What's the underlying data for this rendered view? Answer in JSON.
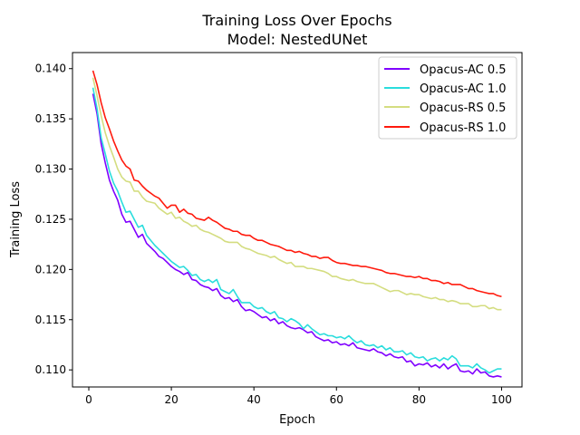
{
  "chart_data": {
    "type": "line",
    "title": "Training Loss Over Epochs",
    "subtitle": "Model: NestedUNet",
    "xlabel": "Epoch",
    "ylabel": "Training Loss",
    "xlim": [
      -3.95,
      104.95
    ],
    "ylim": [
      0.1083,
      0.1416
    ],
    "xticks": [
      0,
      20,
      40,
      60,
      80,
      100
    ],
    "yticks": [
      0.11,
      0.115,
      0.12,
      0.125,
      0.13,
      0.135,
      0.14
    ],
    "ytick_labels": [
      "0.110",
      "0.115",
      "0.120",
      "0.125",
      "0.130",
      "0.135",
      "0.140"
    ],
    "grid": false,
    "legend": "top-right",
    "series": [
      {
        "name": "Opacus-AC 0.5",
        "color": "#8000ff",
        "x_start": 1,
        "values": [
          0.1375,
          0.1355,
          0.1325,
          0.1306,
          0.1289,
          0.1278,
          0.1269,
          0.1255,
          0.1247,
          0.1248,
          0.124,
          0.1232,
          0.1235,
          0.1226,
          0.1222,
          0.1218,
          0.1213,
          0.1211,
          0.1207,
          0.1203,
          0.12,
          0.1198,
          0.1195,
          0.1197,
          0.119,
          0.1189,
          0.1185,
          0.1183,
          0.1182,
          0.1179,
          0.1181,
          0.1174,
          0.1171,
          0.1172,
          0.1168,
          0.117,
          0.1163,
          0.1159,
          0.116,
          0.1158,
          0.1155,
          0.1152,
          0.1153,
          0.1149,
          0.1151,
          0.1146,
          0.1148,
          0.1144,
          0.1142,
          0.1141,
          0.1142,
          0.114,
          0.1137,
          0.1138,
          0.1133,
          0.1131,
          0.1129,
          0.113,
          0.1127,
          0.1128,
          0.1125,
          0.1126,
          0.1124,
          0.1127,
          0.1122,
          0.1121,
          0.112,
          0.1119,
          0.1121,
          0.1118,
          0.1117,
          0.1114,
          0.1116,
          0.1113,
          0.1112,
          0.1113,
          0.1108,
          0.1109,
          0.1104,
          0.1106,
          0.1105,
          0.1107,
          0.1103,
          0.1105,
          0.1102,
          0.1106,
          0.1101,
          0.1104,
          0.1106,
          0.1099,
          0.1098,
          0.1099,
          0.1096,
          0.1101,
          0.1097,
          0.1098,
          0.1094,
          0.1093,
          0.1094,
          0.1093
        ]
      },
      {
        "name": "Opacus-AC 1.0",
        "color": "#2adddd",
        "x_start": 1,
        "values": [
          0.1381,
          0.136,
          0.1331,
          0.1315,
          0.1298,
          0.1286,
          0.1278,
          0.1267,
          0.1257,
          0.1258,
          0.125,
          0.1242,
          0.1244,
          0.1234,
          0.1229,
          0.1224,
          0.122,
          0.1216,
          0.1212,
          0.1208,
          0.1205,
          0.1202,
          0.1203,
          0.1199,
          0.1194,
          0.1195,
          0.119,
          0.1188,
          0.119,
          0.1187,
          0.119,
          0.118,
          0.1178,
          0.1176,
          0.118,
          0.1173,
          0.1167,
          0.1167,
          0.1167,
          0.1163,
          0.1161,
          0.1162,
          0.1158,
          0.1156,
          0.1158,
          0.1152,
          0.1151,
          0.1148,
          0.1151,
          0.1149,
          0.1146,
          0.1141,
          0.1145,
          0.1141,
          0.1138,
          0.1135,
          0.1136,
          0.1134,
          0.1134,
          0.1132,
          0.1133,
          0.1131,
          0.1134,
          0.113,
          0.1127,
          0.1129,
          0.1125,
          0.1124,
          0.1125,
          0.1122,
          0.1124,
          0.112,
          0.1122,
          0.1118,
          0.1118,
          0.1119,
          0.1115,
          0.1117,
          0.1113,
          0.1112,
          0.1113,
          0.1109,
          0.1111,
          0.1112,
          0.1109,
          0.1112,
          0.111,
          0.1114,
          0.1111,
          0.1104,
          0.1104,
          0.1104,
          0.1102,
          0.1106,
          0.1102,
          0.11,
          0.1097,
          0.1099,
          0.1101,
          0.1101
        ]
      },
      {
        "name": "Opacus-RS 0.5",
        "color": "#d4dd80",
        "x_start": 1,
        "values": [
          0.1391,
          0.1373,
          0.1353,
          0.1336,
          0.1323,
          0.1312,
          0.13,
          0.1292,
          0.1288,
          0.1287,
          0.1278,
          0.1278,
          0.1272,
          0.1268,
          0.1267,
          0.1266,
          0.1261,
          0.1258,
          0.1255,
          0.1257,
          0.1251,
          0.1252,
          0.1248,
          0.1246,
          0.1243,
          0.1244,
          0.124,
          0.1238,
          0.1237,
          0.1235,
          0.1233,
          0.1231,
          0.1228,
          0.1227,
          0.1227,
          0.1227,
          0.1223,
          0.1221,
          0.122,
          0.1218,
          0.1216,
          0.1215,
          0.1214,
          0.1212,
          0.1213,
          0.121,
          0.1208,
          0.1206,
          0.1207,
          0.1203,
          0.1203,
          0.1203,
          0.1201,
          0.1201,
          0.12,
          0.1199,
          0.1198,
          0.1196,
          0.1193,
          0.1193,
          0.1191,
          0.119,
          0.1189,
          0.119,
          0.1188,
          0.1187,
          0.1186,
          0.1186,
          0.1186,
          0.1184,
          0.1182,
          0.118,
          0.1178,
          0.1179,
          0.1179,
          0.1177,
          0.1175,
          0.1176,
          0.1175,
          0.1175,
          0.1173,
          0.1172,
          0.1171,
          0.1172,
          0.117,
          0.117,
          0.1168,
          0.1169,
          0.1168,
          0.1166,
          0.1166,
          0.1166,
          0.1163,
          0.1163,
          0.1164,
          0.1164,
          0.1161,
          0.1162,
          0.116,
          0.116
        ]
      },
      {
        "name": "Opacus-RS 1.0",
        "color": "#ff1a0d",
        "x_start": 1,
        "values": [
          0.1398,
          0.1384,
          0.1366,
          0.1351,
          0.134,
          0.1328,
          0.1318,
          0.1309,
          0.1303,
          0.13,
          0.1289,
          0.1288,
          0.1283,
          0.1279,
          0.1276,
          0.1273,
          0.1271,
          0.1266,
          0.1261,
          0.1264,
          0.1264,
          0.1257,
          0.126,
          0.1256,
          0.1255,
          0.1251,
          0.125,
          0.1249,
          0.1252,
          0.1249,
          0.1247,
          0.1244,
          0.1241,
          0.124,
          0.1238,
          0.1238,
          0.1235,
          0.1234,
          0.1234,
          0.1231,
          0.1229,
          0.1229,
          0.1227,
          0.1225,
          0.1224,
          0.1223,
          0.1221,
          0.1219,
          0.1219,
          0.1217,
          0.1218,
          0.1216,
          0.1215,
          0.1213,
          0.1213,
          0.1211,
          0.1212,
          0.1212,
          0.1209,
          0.1207,
          0.1206,
          0.1206,
          0.1205,
          0.1204,
          0.1204,
          0.1203,
          0.1203,
          0.1202,
          0.1201,
          0.12,
          0.1199,
          0.1197,
          0.1196,
          0.1196,
          0.1195,
          0.1194,
          0.1193,
          0.1193,
          0.1192,
          0.1193,
          0.1191,
          0.1191,
          0.1189,
          0.1189,
          0.1188,
          0.1186,
          0.1187,
          0.1185,
          0.1185,
          0.1185,
          0.1183,
          0.1181,
          0.1181,
          0.1179,
          0.1178,
          0.1177,
          0.1176,
          0.1176,
          0.1174,
          0.1173
        ]
      }
    ]
  }
}
